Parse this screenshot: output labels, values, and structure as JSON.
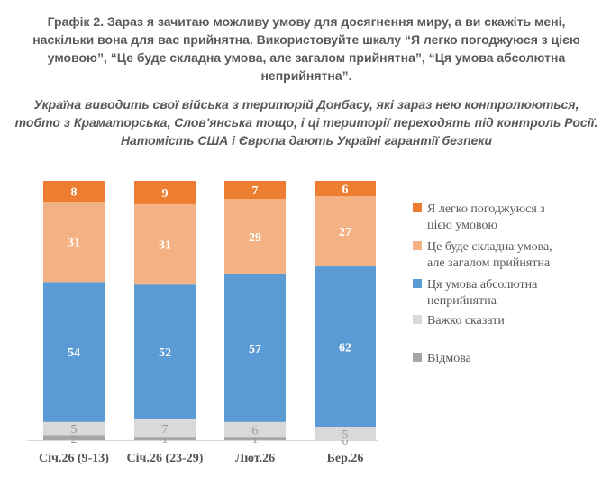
{
  "chart_data": {
    "type": "bar",
    "stacked": true,
    "title": "Графік 2. Зараз я зачитаю можливу умову для досягнення миру, а ви скажіть мені, наскільки вона для вас прийнятна. Використовуйте шкалу “Я легко погоджуюся з цією умовою”, “Це буде складна умова, але загалом прийнятна”, “Ця умова абсолютна неприйнятна”.",
    "subtitle": "Україна виводить свої війська з територій Донбасу, які зараз нею контролюються, тобто з Краматорська, Слов'янська тощо, і ці території переходять під контроль Росії. Натомість США і Європа дають Україні гарантії безпеки",
    "categories": [
      "Січ.26 (9-13)",
      "Січ.26 (23-29)",
      "Лют.26",
      "Бер.26"
    ],
    "series": [
      {
        "name": "Я легко погоджуюся з цією умовою",
        "color": "#ED7D31",
        "values": [
          8,
          9,
          7,
          6
        ]
      },
      {
        "name": "Це буде складна умова, але загалом прийнятна",
        "color": "#F4B183",
        "values": [
          31,
          31,
          29,
          27
        ]
      },
      {
        "name": "Ця умова абсолютна неприйнятна",
        "color": "#5B9BD5",
        "values": [
          54,
          52,
          57,
          62
        ]
      },
      {
        "name": "Важко сказати",
        "color": "#D9D9D9",
        "values": [
          5,
          7,
          6,
          5
        ]
      },
      {
        "name": "Відмова",
        "color": "#A6A6A6",
        "values": [
          2,
          1,
          1,
          0
        ]
      }
    ],
    "ylim": [
      0,
      100
    ],
    "legend": "right",
    "stack_order_top_to_bottom": [
      "Я легко погоджуюся з цією умовою",
      "Це буде складна умова, але загалом прийнятна",
      "Ця умова абсолютна неприйнятна",
      "Важко сказати",
      "Відмова"
    ]
  }
}
